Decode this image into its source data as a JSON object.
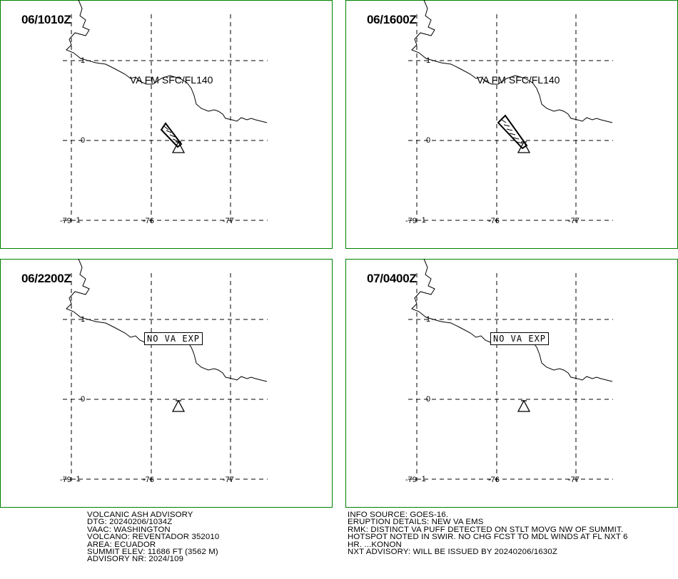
{
  "panels": [
    {
      "time": "06/1010Z",
      "label": "VA FM SFC/FL140",
      "label_type": "text",
      "ash": "small"
    },
    {
      "time": "06/1600Z",
      "label": "VA FM SFC/FL140",
      "label_type": "text",
      "ash": "large"
    },
    {
      "time": "06/2200Z",
      "label": "NO VA EXP",
      "label_type": "box",
      "ash": "none"
    },
    {
      "time": "07/0400Z",
      "label": "NO VA EXP",
      "label_type": "box",
      "ash": "none"
    }
  ],
  "grid_labels": {
    "lat_1": "1",
    "lat_0": "0",
    "lat_neg1": "-1",
    "lon_79": "-79",
    "lon_76": "-76",
    "lon_77": "-77"
  },
  "advisory_left": [
    "VOLCANIC ASH ADVISORY",
    "DTG: 20240206/1034Z",
    "VAAC: WASHINGTON",
    "VOLCANO: REVENTADOR 352010",
    "AREA: ECUADOR",
    "SUMMIT ELEV: 11686 FT (3562 M)",
    "ADVISORY NR: 2024/109"
  ],
  "advisory_right": [
    "INFO SOURCE: GOES-16.",
    "ERUPTION DETAILS: NEW VA EMS",
    "RMK: DISTINCT VA PUFF DETECTED ON STLT MOVG NW OF SUMMIT.",
    "HOTSPOT NOTED IN SWIR. NO CHG FCST TO MDL WINDS AT FL NXT 6",
    "HR. ...KONON",
    "NXT ADVISORY: WILL BE ISSUED BY 20240206/1630Z"
  ],
  "colors": {
    "frame": "#008000",
    "lines": "#000000",
    "background": "#ffffff"
  }
}
